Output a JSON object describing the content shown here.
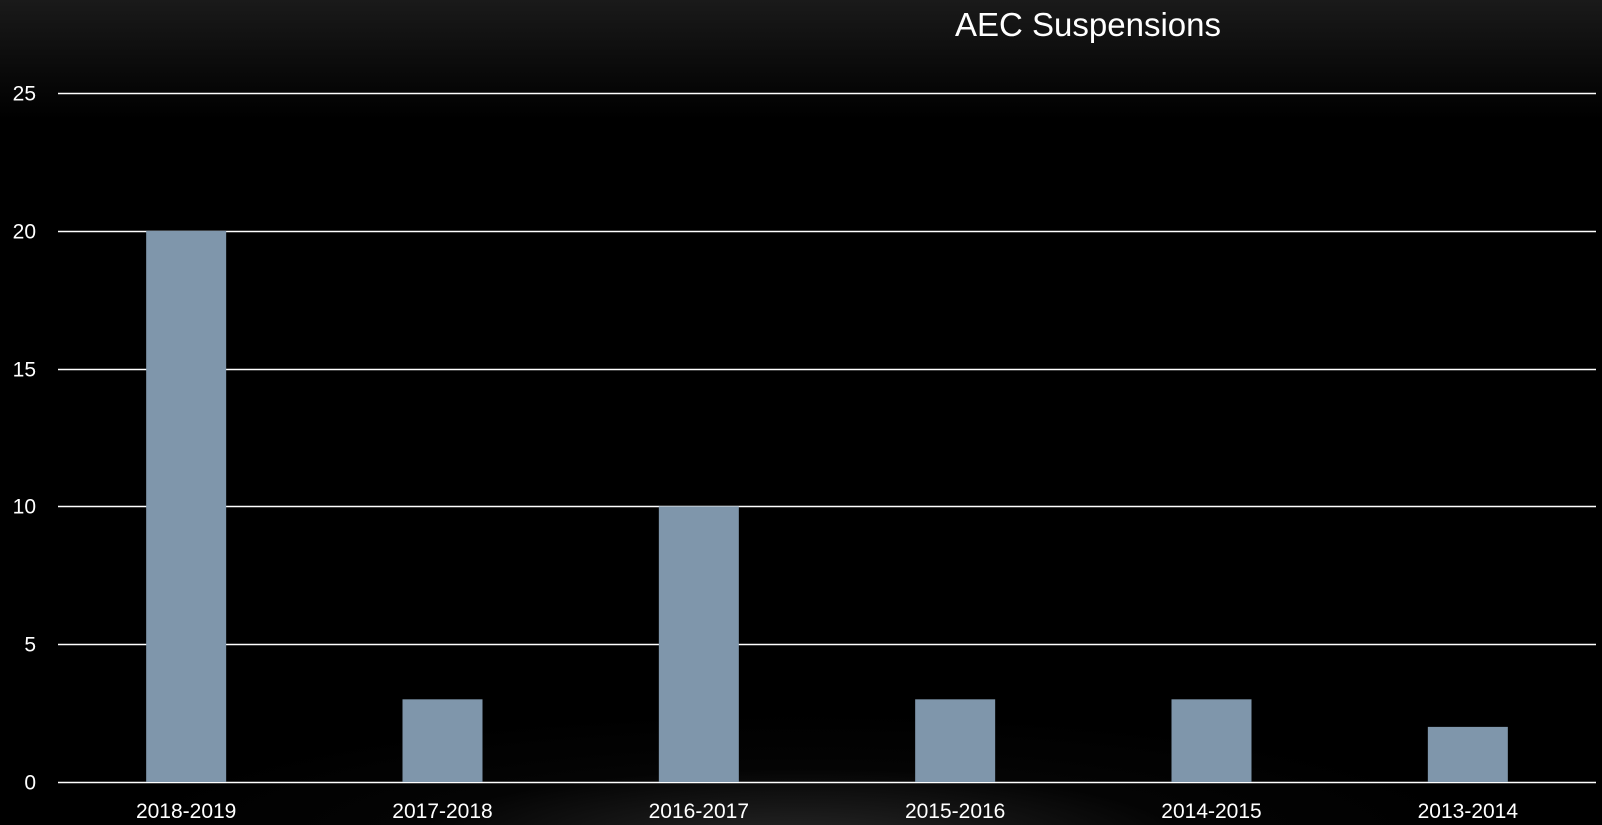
{
  "chart_data": {
    "type": "bar",
    "title": "AEC Suspensions",
    "xlabel": "",
    "ylabel": "",
    "categories": [
      "2018-2019",
      "2017-2018",
      "2016-2017",
      "2015-2016",
      "2014-2015",
      "2013-2014"
    ],
    "values": [
      20,
      3,
      10,
      3,
      3,
      2
    ],
    "ylim": [
      0,
      25
    ],
    "yticks": [
      0,
      5,
      10,
      15,
      20,
      25
    ],
    "grid": true,
    "legend": "none",
    "colors": {
      "bar": "#7f96ab",
      "grid": "#ffffff",
      "text": "#ffffff",
      "background": "#000000"
    }
  }
}
